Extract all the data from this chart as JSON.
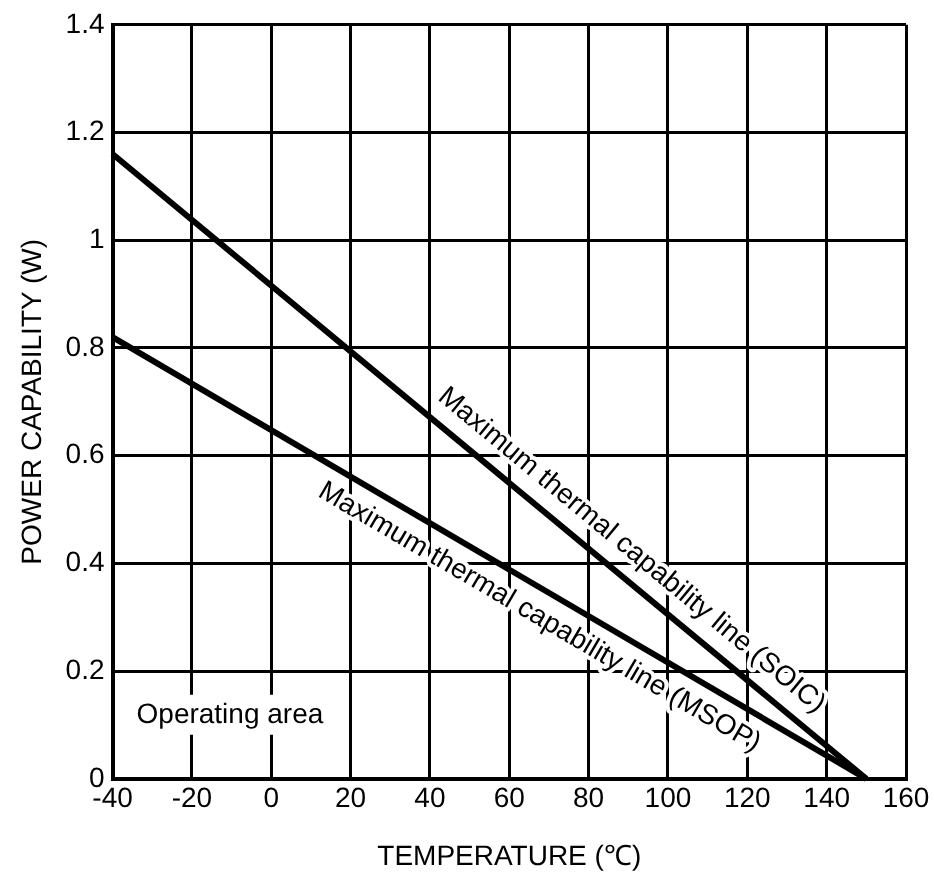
{
  "chart_data": {
    "type": "line",
    "xlabel": "TEMPERATURE (℃)",
    "ylabel": "POWER CAPABILITY (W)",
    "xlim": [
      -40,
      160
    ],
    "xticks": [
      -40,
      -20,
      0,
      20,
      40,
      60,
      80,
      100,
      120,
      140,
      160
    ],
    "x": [
      -40,
      150
    ],
    "ylim": [
      0,
      1.4
    ],
    "yticks": [
      0,
      0.2,
      0.4,
      0.6,
      0.8,
      1,
      1.2,
      1.4
    ],
    "grid": true,
    "legend": false,
    "marker": "none",
    "line_style": "solid",
    "series": [
      {
        "name": "Maximum thermal capability line (SOIC)",
        "color": "#000000",
        "values": [
          1.16,
          0
        ]
      },
      {
        "name": "Maximum thermal capability line (MSOP)",
        "color": "#000000",
        "values": [
          0.82,
          0
        ]
      }
    ],
    "annotations": [
      "Operating area"
    ]
  }
}
